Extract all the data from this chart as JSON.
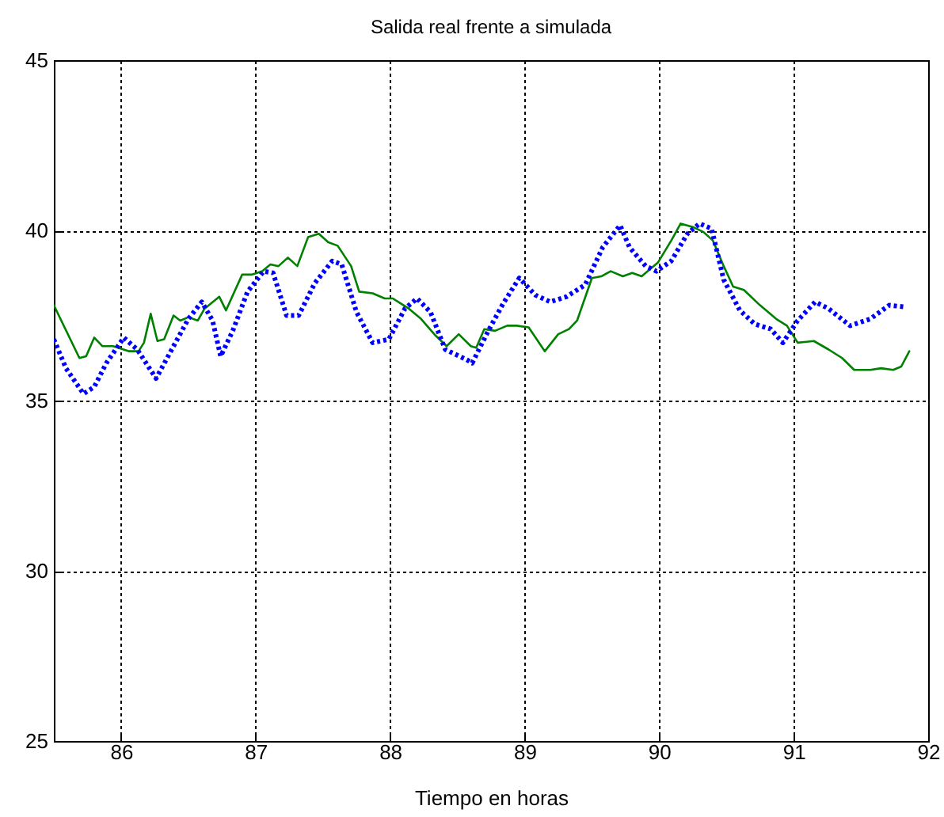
{
  "chart_data": {
    "type": "line",
    "title": "Salida real frente a simulada",
    "xlabel": "Tiempo en horas",
    "xlim": [
      85.5,
      92
    ],
    "xticks": [
      86,
      87,
      88,
      89,
      90,
      91,
      92
    ],
    "ylim": [
      25,
      45
    ],
    "yticks": [
      25,
      30,
      35,
      40,
      45
    ],
    "grid": true,
    "series": [
      {
        "color": "#008000",
        "line_style": "solid",
        "x": [
          85.5,
          85.69,
          85.74,
          85.8,
          85.86,
          85.94,
          86.06,
          86.13,
          86.17,
          86.22,
          86.27,
          86.32,
          86.39,
          86.44,
          86.5,
          86.57,
          86.62,
          86.73,
          86.78,
          86.9,
          86.97,
          87.05,
          87.11,
          87.17,
          87.24,
          87.31,
          87.39,
          87.47,
          87.54,
          87.61,
          87.71,
          87.77,
          87.87,
          87.96,
          88.02,
          88.14,
          88.23,
          88.34,
          88.42,
          88.51,
          88.6,
          88.64,
          88.7,
          88.78,
          88.87,
          88.94,
          89.03,
          89.15,
          89.25,
          89.33,
          89.39,
          89.5,
          89.57,
          89.64,
          89.73,
          89.8,
          89.87,
          89.99,
          90.09,
          90.16,
          90.25,
          90.33,
          90.4,
          90.48,
          90.55,
          90.63,
          90.75,
          90.87,
          90.95,
          91.03,
          91.15,
          91.26,
          91.36,
          91.45,
          91.57,
          91.65,
          91.74,
          91.8,
          91.86
        ],
        "values": [
          37.8,
          36.25,
          36.3,
          36.85,
          36.6,
          36.6,
          36.45,
          36.45,
          36.7,
          37.55,
          36.75,
          36.8,
          37.5,
          37.35,
          37.45,
          37.35,
          37.7,
          38.05,
          37.65,
          38.7,
          38.7,
          38.8,
          39.0,
          38.95,
          39.2,
          38.95,
          39.8,
          39.9,
          39.65,
          39.55,
          38.95,
          38.2,
          38.15,
          38.0,
          38.0,
          37.7,
          37.4,
          36.9,
          36.6,
          36.95,
          36.6,
          36.55,
          37.1,
          37.05,
          37.2,
          37.2,
          37.15,
          36.45,
          36.95,
          37.1,
          37.35,
          38.6,
          38.65,
          38.8,
          38.65,
          38.75,
          38.65,
          39.05,
          39.7,
          40.2,
          40.1,
          39.95,
          39.7,
          38.95,
          38.35,
          38.25,
          37.8,
          37.4,
          37.2,
          36.7,
          36.75,
          36.5,
          36.25,
          35.9,
          35.9,
          35.95,
          35.9,
          36.0,
          36.45
        ]
      },
      {
        "color": "#0000ff",
        "line_style": "dotted",
        "x": [
          85.5,
          85.59,
          85.72,
          85.8,
          85.89,
          86.02,
          86.12,
          86.26,
          86.39,
          86.5,
          86.6,
          86.68,
          86.74,
          86.83,
          86.94,
          87.06,
          87.13,
          87.23,
          87.32,
          87.44,
          87.57,
          87.64,
          87.75,
          87.87,
          87.99,
          88.11,
          88.2,
          88.3,
          88.41,
          88.57,
          88.61,
          88.73,
          88.84,
          88.96,
          89.08,
          89.19,
          89.31,
          89.45,
          89.58,
          89.71,
          89.78,
          89.9,
          89.98,
          90.09,
          90.21,
          90.3,
          90.39,
          90.48,
          90.6,
          90.71,
          90.83,
          90.92,
          91.03,
          91.16,
          91.26,
          91.42,
          91.57,
          91.71,
          91.83
        ],
        "values": [
          36.8,
          35.95,
          35.2,
          35.4,
          36.1,
          36.85,
          36.5,
          35.65,
          36.6,
          37.4,
          37.9,
          37.35,
          36.3,
          37.05,
          38.2,
          38.8,
          38.75,
          37.5,
          37.5,
          38.45,
          39.1,
          39.0,
          37.6,
          36.7,
          36.8,
          37.7,
          38.0,
          37.6,
          36.5,
          36.2,
          36.1,
          37.05,
          37.85,
          38.6,
          38.1,
          37.9,
          38.05,
          38.4,
          39.5,
          40.15,
          39.5,
          38.95,
          38.8,
          39.1,
          39.9,
          40.2,
          40.05,
          38.55,
          37.65,
          37.25,
          37.1,
          36.7,
          37.35,
          37.9,
          37.7,
          37.2,
          37.4,
          37.8,
          37.75
        ]
      }
    ]
  }
}
